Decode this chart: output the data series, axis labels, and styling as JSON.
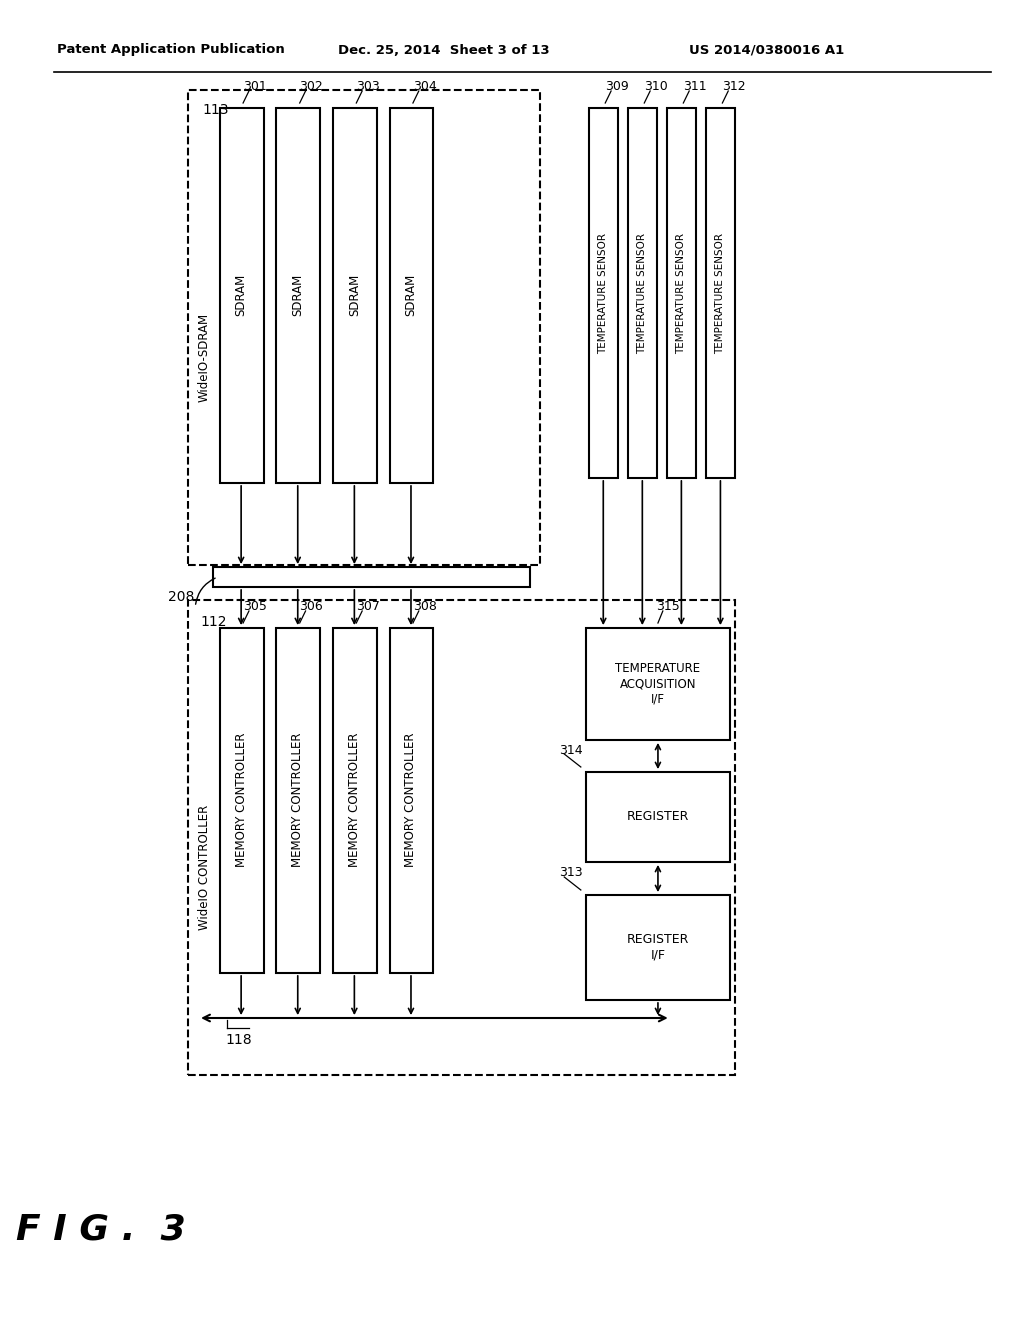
{
  "header_left": "Patent Application Publication",
  "header_mid": "Dec. 25, 2014  Sheet 3 of 13",
  "header_right": "US 2014/0380016 A1",
  "bg_color": "#ffffff",
  "fig_label": "F I G .  3",
  "box113_label": "113",
  "box112_label": "112",
  "box208_label": "208",
  "box118_label": "118",
  "sdram_labels": [
    "SDRAM",
    "SDRAM",
    "SDRAM",
    "SDRAM"
  ],
  "sdram_ids": [
    "301",
    "302",
    "303",
    "304"
  ],
  "wideio_sdram_label": "WideIO-SDRAM",
  "temp_sensor_labels": [
    "TEMPERATURE SENSOR",
    "TEMPERATURE SENSOR",
    "TEMPERATURE SENSOR",
    "TEMPERATURE SENSOR"
  ],
  "temp_sensor_ids": [
    "309",
    "310",
    "311",
    "312"
  ],
  "mc_labels": [
    "MEMORY CONTROLLER",
    "MEMORY CONTROLLER",
    "MEMORY CONTROLLER",
    "MEMORY CONTROLLER"
  ],
  "mc_ids": [
    "305",
    "306",
    "307",
    "308"
  ],
  "wideio_ctrl_label": "WideIO CONTROLLER",
  "temp_acq_label": "TEMPERATURE\nACQUISITION\nI/F",
  "temp_acq_id": "315",
  "register_label": "REGISTER",
  "register_id": "314",
  "register_if_label": "REGISTER\nI/F",
  "register_if_id": "313"
}
